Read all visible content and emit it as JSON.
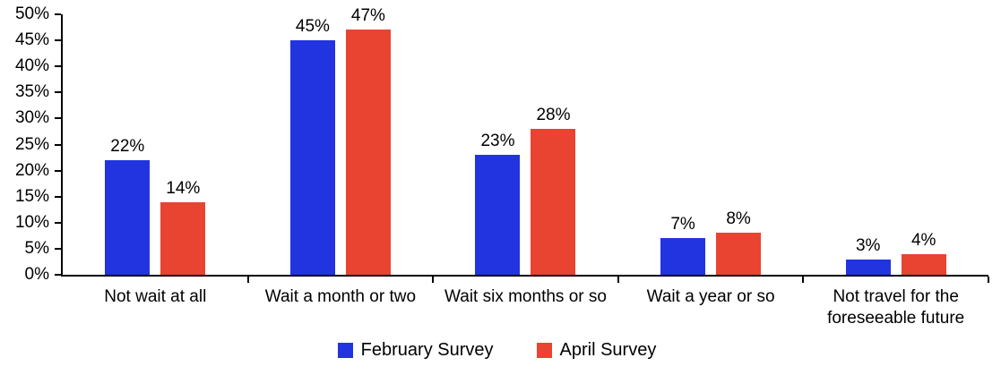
{
  "chart_data": {
    "type": "bar",
    "title": "",
    "categories": [
      "Not wait at all",
      "Wait a month or two",
      "Wait six months or so",
      "Wait a year or so",
      "Not travel for the foreseeable future"
    ],
    "series": [
      {
        "name": "February Survey",
        "color": "#2134E0",
        "values": [
          22,
          45,
          23,
          7,
          3
        ]
      },
      {
        "name": "April Survey",
        "color": "#E94332",
        "values": [
          14,
          47,
          28,
          8,
          4
        ]
      }
    ],
    "ylim": [
      0,
      50
    ],
    "ytick_step": 5,
    "ytick_labels": [
      "0%",
      "5%",
      "10%",
      "15%",
      "20%",
      "25%",
      "30%",
      "35%",
      "40%",
      "45%",
      "50%"
    ],
    "value_label_suffix": "%",
    "grid": false,
    "legend_position": "bottom",
    "axis_color": "#000000",
    "text_color": "#000000",
    "background_color": "#ffffff"
  }
}
